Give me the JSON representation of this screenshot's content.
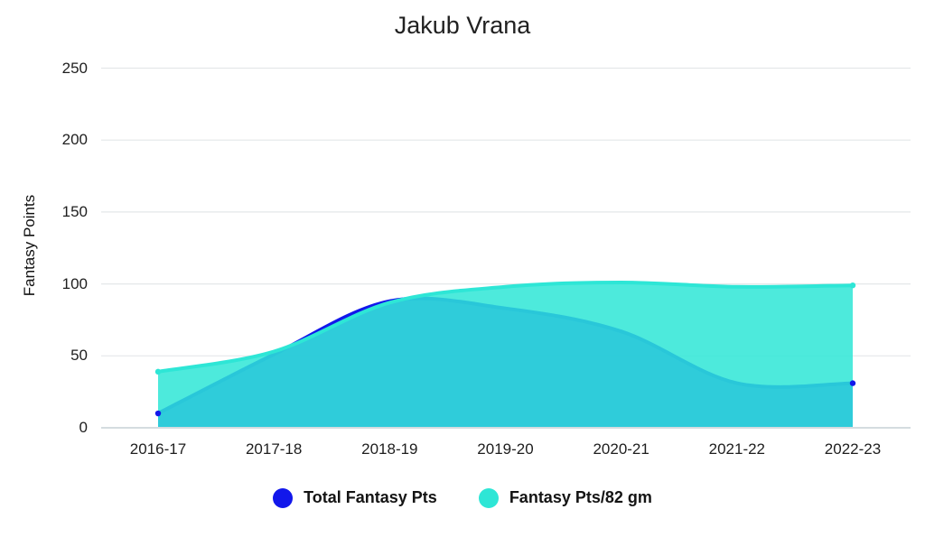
{
  "title": "Jakub Vrana",
  "chart_data": {
    "type": "area",
    "curve": "smooth",
    "title": "Jakub Vrana",
    "xlabel": "",
    "ylabel": "Fantasy Points",
    "categories": [
      "2016-17",
      "2017-18",
      "2018-19",
      "2019-20",
      "2020-21",
      "2021-22",
      "2022-23"
    ],
    "series": [
      {
        "name": "Total Fantasy Pts",
        "color": "#1217eb",
        "values": [
          10,
          51,
          88,
          83,
          67,
          31,
          31
        ]
      },
      {
        "name": "Fantasy Pts/82 gm",
        "color": "#2ee6d6",
        "values": [
          39,
          53,
          87,
          98,
          101,
          98,
          99
        ]
      }
    ],
    "ylim": [
      0,
      250
    ],
    "yticks": [
      0,
      50,
      100,
      150,
      200,
      250
    ],
    "grid": true,
    "gridline_color": "#e4e7e9",
    "baseline_color": "#c7d0d6",
    "area_opacity": 0.85,
    "legend_position": "bottom"
  }
}
